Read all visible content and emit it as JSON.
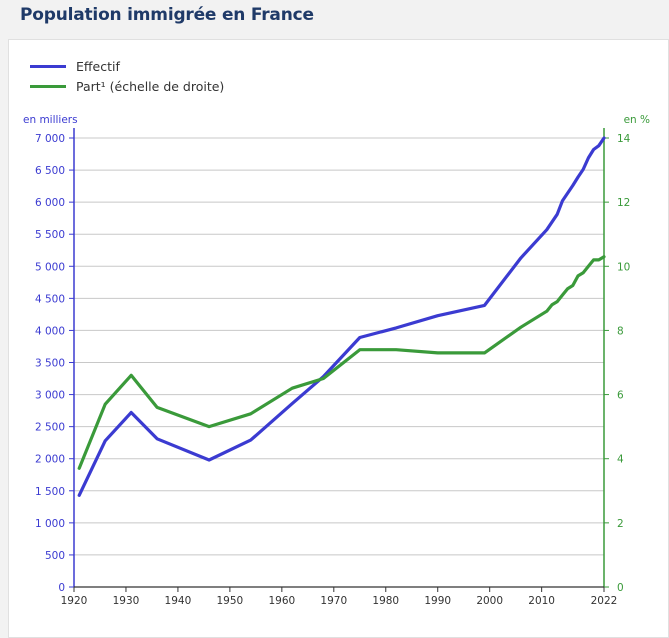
{
  "page": {
    "title": "Population immigrée en France"
  },
  "colors": {
    "effectif": "#3b3bd1",
    "part": "#3a9a3a",
    "grid": "#c8c8c8",
    "axis_dark": "#333333"
  },
  "chart_data": {
    "type": "line",
    "title": "Population immigrée en France",
    "legend": {
      "placement": "top-left",
      "entries": [
        "Effectif",
        "Part¹ (échelle de droite)"
      ]
    },
    "y_left": {
      "unit_label": "en milliers",
      "range": [
        0,
        7000
      ],
      "ticks": [
        0,
        500,
        1000,
        1500,
        2000,
        2500,
        3000,
        3500,
        4000,
        4500,
        5000,
        5500,
        6000,
        6500,
        7000
      ],
      "tick_labels": [
        "0",
        "500",
        "1 000",
        "1 500",
        "2 000",
        "2 500",
        "3 000",
        "3 500",
        "4 000",
        "4 500",
        "5 000",
        "5 500",
        "6 000",
        "6 500",
        "7 000"
      ]
    },
    "y_right": {
      "unit_label": "en %",
      "range": [
        0,
        14
      ],
      "ticks": [
        0,
        2,
        4,
        6,
        8,
        10,
        12,
        14
      ],
      "tick_labels": [
        "0",
        "2",
        "4",
        "6",
        "8",
        "10",
        "12",
        "14"
      ]
    },
    "x_axis": {
      "range": [
        1920,
        2022
      ],
      "ticks": [
        1920,
        1930,
        1940,
        1950,
        1960,
        1970,
        1980,
        1990,
        2000,
        2010,
        2022
      ],
      "tick_labels": [
        "1920",
        "1930",
        "1940",
        "1950",
        "1960",
        "1970",
        "1980",
        "1990",
        "2000",
        "2010",
        "2022"
      ]
    },
    "grid": true,
    "series": [
      {
        "name": "Effectif",
        "axis": "left",
        "x": [
          1921,
          1926,
          1931,
          1936,
          1946,
          1954,
          1962,
          1968,
          1975,
          1982,
          1990,
          1999,
          2006,
          2011,
          2013,
          2014,
          2016,
          2017,
          2018,
          2019,
          2020,
          2021,
          2022
        ],
        "y": [
          1430,
          2280,
          2720,
          2310,
          1980,
          2290,
          2860,
          3280,
          3890,
          4040,
          4230,
          4390,
          5130,
          5570,
          5810,
          6020,
          6260,
          6390,
          6510,
          6690,
          6820,
          6880,
          7000
        ]
      },
      {
        "name": "Part¹ (échelle de droite)",
        "axis": "right",
        "x": [
          1921,
          1926,
          1931,
          1936,
          1946,
          1954,
          1962,
          1968,
          1975,
          1982,
          1990,
          1999,
          2006,
          2011,
          2012,
          2013,
          2014,
          2015,
          2016,
          2017,
          2018,
          2019,
          2020,
          2021,
          2022
        ],
        "y": [
          3.7,
          5.7,
          6.6,
          5.6,
          5.0,
          5.4,
          6.2,
          6.5,
          7.4,
          7.4,
          7.3,
          7.3,
          8.1,
          8.6,
          8.8,
          8.9,
          9.1,
          9.3,
          9.4,
          9.7,
          9.8,
          10.0,
          10.2,
          10.2,
          10.3
        ]
      }
    ]
  }
}
